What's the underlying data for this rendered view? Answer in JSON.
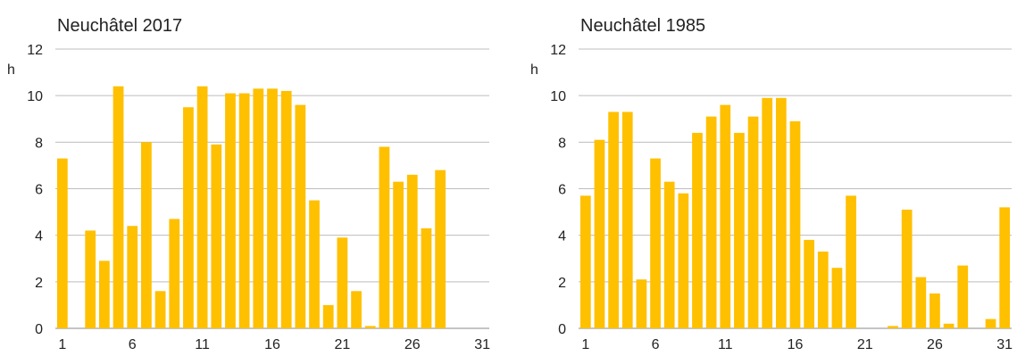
{
  "chart_data": [
    {
      "type": "bar",
      "title": "Neuchâtel 2017",
      "ylabel": "h",
      "xlabel": "",
      "ylim": [
        0,
        12
      ],
      "yticks": [
        0,
        2,
        4,
        6,
        8,
        10,
        12
      ],
      "xticks": [
        1,
        6,
        11,
        16,
        21,
        26,
        31
      ],
      "grid": true,
      "bar_color": "#FFC000",
      "categories": [
        1,
        2,
        3,
        4,
        5,
        6,
        7,
        8,
        9,
        10,
        11,
        12,
        13,
        14,
        15,
        16,
        17,
        18,
        19,
        20,
        21,
        22,
        23,
        24,
        25,
        26,
        27,
        28,
        29,
        30,
        31
      ],
      "values": [
        7.3,
        0,
        4.2,
        2.9,
        10.4,
        4.4,
        8.0,
        1.6,
        4.7,
        9.5,
        10.4,
        7.9,
        10.1,
        10.1,
        10.3,
        10.3,
        10.2,
        9.6,
        5.5,
        1.0,
        3.9,
        1.6,
        0.1,
        7.8,
        6.3,
        6.6,
        4.3,
        6.8,
        0,
        0,
        0
      ]
    },
    {
      "type": "bar",
      "title": "Neuchâtel 1985",
      "ylabel": "h",
      "xlabel": "",
      "ylim": [
        0,
        12
      ],
      "yticks": [
        0,
        2,
        4,
        6,
        8,
        10,
        12
      ],
      "xticks": [
        1,
        6,
        11,
        16,
        21,
        26,
        31
      ],
      "grid": true,
      "bar_color": "#FFC000",
      "categories": [
        1,
        2,
        3,
        4,
        5,
        6,
        7,
        8,
        9,
        10,
        11,
        12,
        13,
        14,
        15,
        16,
        17,
        18,
        19,
        20,
        21,
        22,
        23,
        24,
        25,
        26,
        27,
        28,
        29,
        30,
        31
      ],
      "values": [
        5.7,
        8.1,
        9.3,
        9.3,
        2.1,
        7.3,
        6.3,
        5.8,
        8.4,
        9.1,
        9.6,
        8.4,
        9.1,
        9.9,
        9.9,
        8.9,
        3.8,
        3.3,
        2.6,
        5.7,
        0,
        0,
        0.1,
        5.1,
        2.2,
        1.5,
        0.2,
        2.7,
        0,
        0.4,
        5.2
      ]
    }
  ]
}
